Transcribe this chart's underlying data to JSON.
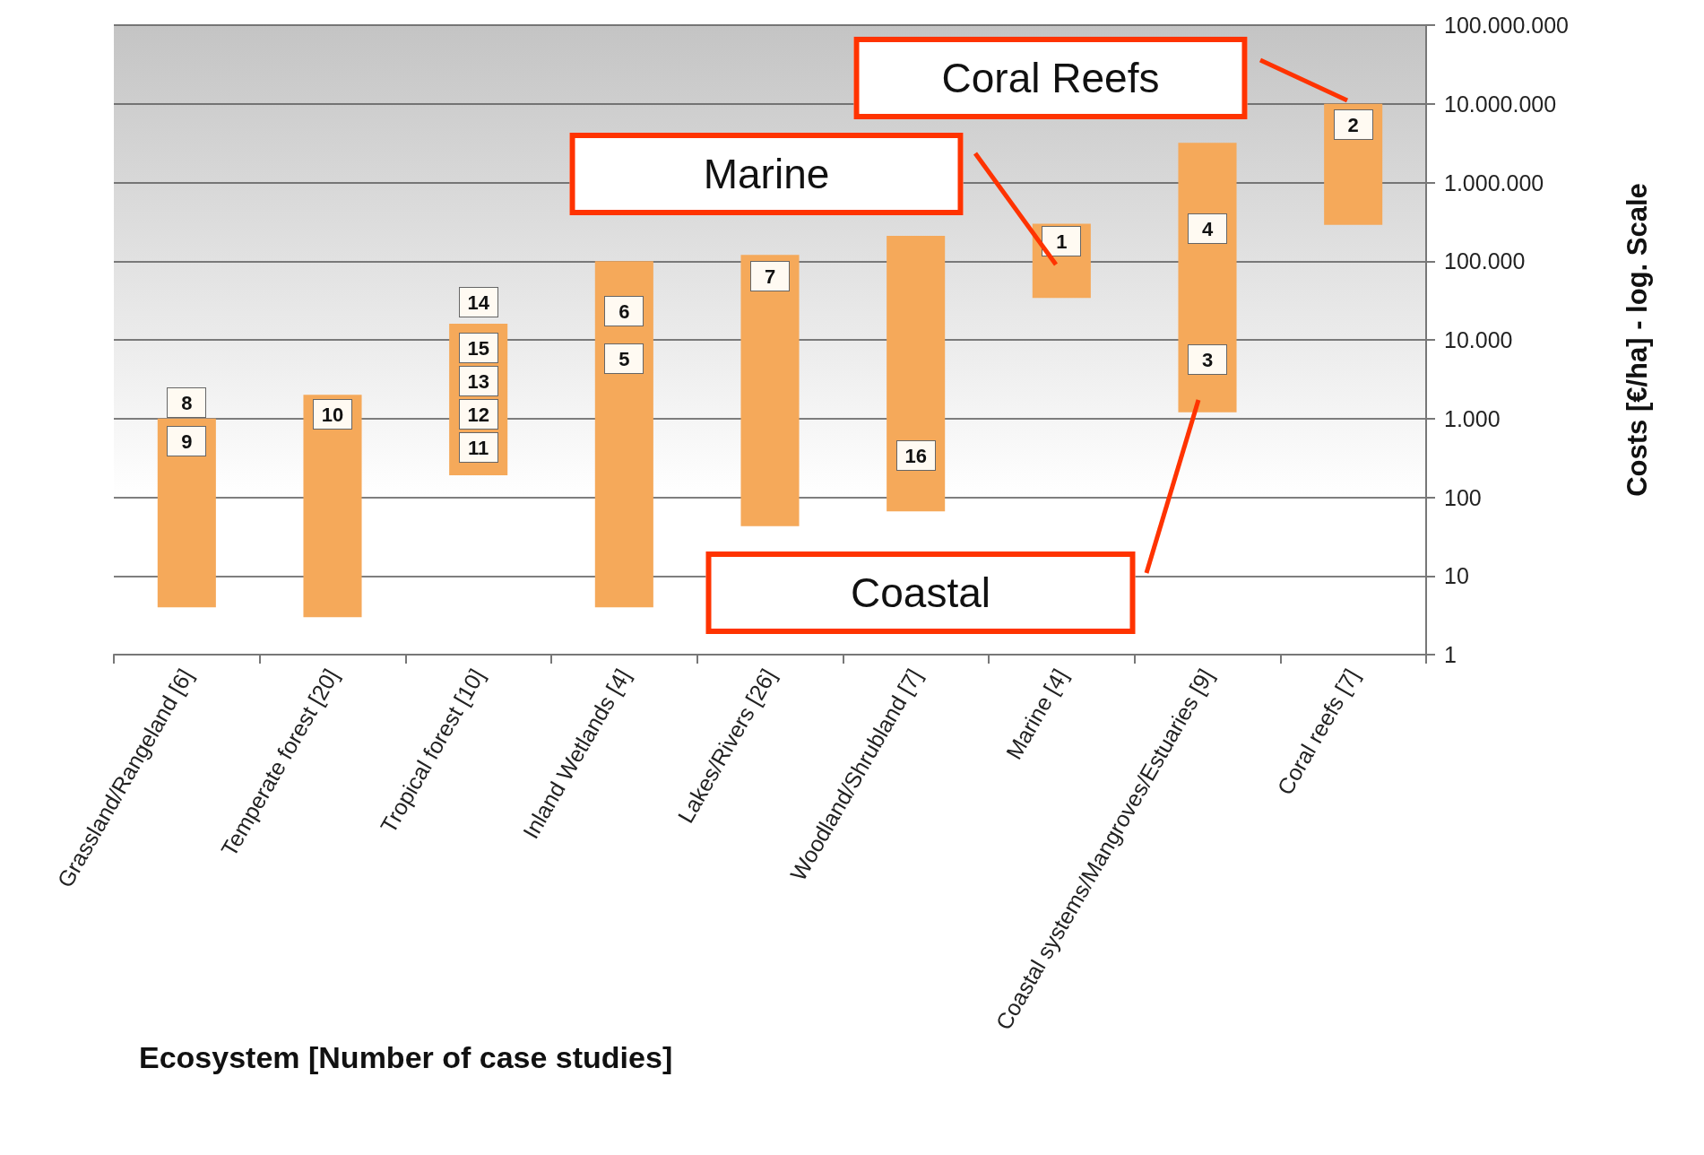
{
  "chart_data": {
    "type": "bar",
    "xlabel": "Ecosystem [Number of case studies]",
    "ylabel": "Costs [€/ha] - log. Scale",
    "categories": [
      "Grassland/Rangeland [6]",
      "Temperate forest [20]",
      "Tropical forest [10]",
      "Inland Wetlands [4]",
      "Lakes/Rivers [26]",
      "Woodland/Shrubland [7]",
      "Marine [4]",
      "Coastal systems/Mangroves/Estuaries [9]",
      "Coral reefs [7]"
    ],
    "base": [
      4,
      3,
      190,
      4,
      43,
      66,
      34000,
      1200,
      290000
    ],
    "values": [
      996,
      1997,
      15810,
      99996,
      119957,
      209934,
      266000,
      3198800,
      9710000
    ],
    "color": "#f5a95a",
    "log": "y",
    "grid": "y",
    "ylim": [
      1,
      100000000
    ],
    "yticks": [
      {
        "value": 1,
        "label": "1"
      },
      {
        "value": 10,
        "label": "10"
      },
      {
        "value": 100,
        "label": "100"
      },
      {
        "value": 1000,
        "label": "1.000"
      },
      {
        "value": 10000,
        "label": "10.000"
      },
      {
        "value": 100000,
        "label": "100.000"
      },
      {
        "value": 1000000,
        "label": "1.000.000"
      },
      {
        "value": 10000000,
        "label": "10.000.000"
      },
      {
        "value": 100000000,
        "label": "100.000.000"
      }
    ],
    "annotations": [
      "8",
      "9",
      "10",
      "14",
      "15",
      "13",
      "12",
      "11",
      "6",
      "5",
      "7",
      "16",
      "1",
      "4",
      "3",
      "2",
      "Coral Reefs",
      "Marine",
      "Coastal"
    ]
  }
}
